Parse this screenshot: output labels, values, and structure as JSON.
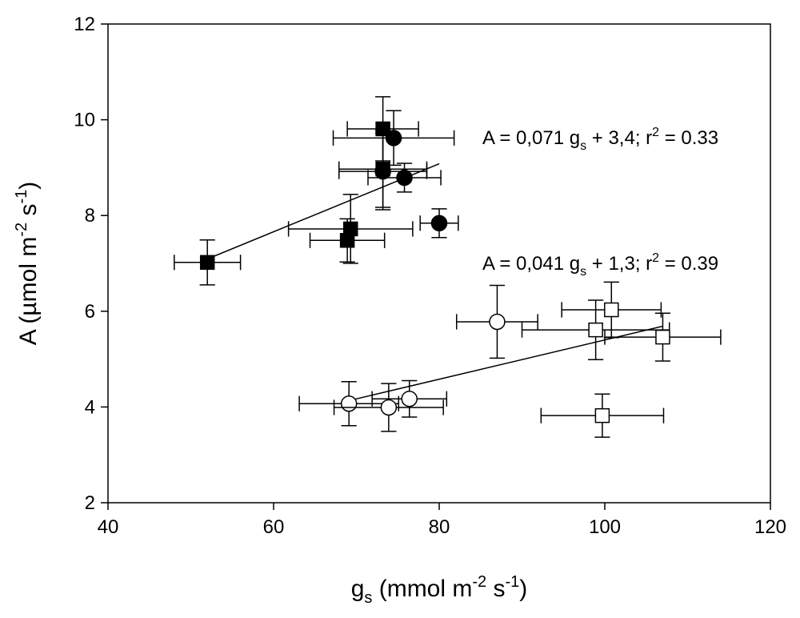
{
  "chart_data": {
    "type": "scatter",
    "title": "",
    "xlabel": {
      "main": "g",
      "sub": "s",
      "rest": " (mmol m",
      "sup1": "-2",
      "mid": " s",
      "sup2": "-1",
      "end": ")"
    },
    "ylabel": {
      "main": "A (µmol m",
      "sup1": "-2",
      "mid": " s",
      "sup2": "-1",
      "end": ")"
    },
    "xlim": [
      40,
      120
    ],
    "ylim": [
      2,
      12
    ],
    "xticks": [
      "40",
      "60",
      "80",
      "100",
      "120"
    ],
    "yticks": [
      "2",
      "4",
      "6",
      "8",
      "10",
      "12"
    ],
    "grid": false,
    "series": [
      {
        "marker": "square",
        "fill": "#000000",
        "points": [
          {
            "x": 52.0,
            "y": 7.02,
            "xerr": 4.0,
            "yerr": 0.47
          },
          {
            "x": 73.2,
            "y": 9.81,
            "xerr": 4.3,
            "yerr": 0.67
          },
          {
            "x": 73.2,
            "y": 8.97,
            "xerr": 5.3,
            "yerr": 0.8
          },
          {
            "x": 69.3,
            "y": 7.72,
            "xerr": 7.5,
            "yerr": 0.72
          },
          {
            "x": 68.9,
            "y": 7.48,
            "xerr": 4.5,
            "yerr": 0.45
          }
        ]
      },
      {
        "marker": "circle",
        "fill": "#000000",
        "points": [
          {
            "x": 74.5,
            "y": 9.62,
            "xerr": 7.3,
            "yerr": 0.57
          },
          {
            "x": 73.2,
            "y": 8.92,
            "xerr": 5.3,
            "yerr": 0.8
          },
          {
            "x": 75.8,
            "y": 8.79,
            "xerr": 4.4,
            "yerr": 0.3
          },
          {
            "x": 80.0,
            "y": 7.84,
            "xerr": 2.3,
            "yerr": 0.3
          }
        ]
      },
      {
        "marker": "circle",
        "fill": "#ffffff",
        "points": [
          {
            "x": 87.0,
            "y": 5.78,
            "xerr": 4.9,
            "yerr": 0.76
          },
          {
            "x": 69.1,
            "y": 4.07,
            "xerr": 6.0,
            "yerr": 0.46
          },
          {
            "x": 73.9,
            "y": 3.99,
            "xerr": 6.6,
            "yerr": 0.5
          },
          {
            "x": 76.4,
            "y": 4.17,
            "xerr": 4.5,
            "yerr": 0.38
          }
        ]
      },
      {
        "marker": "square",
        "fill": "#ffffff",
        "points": [
          {
            "x": 100.8,
            "y": 6.03,
            "xerr": 6.0,
            "yerr": 0.58
          },
          {
            "x": 98.9,
            "y": 5.61,
            "xerr": 8.9,
            "yerr": 0.62
          },
          {
            "x": 107.0,
            "y": 5.46,
            "xerr": 7.0,
            "yerr": 0.5
          },
          {
            "x": 99.7,
            "y": 3.82,
            "xerr": 7.4,
            "yerr": 0.45
          }
        ]
      }
    ],
    "regressions": [
      {
        "slope": 0.071,
        "intercept": 3.4,
        "x_range": [
          52,
          80
        ],
        "label": {
          "a": "A = 0,071 g",
          "sub": "s",
          "b": " + 3,4; r",
          "sup": "2",
          "c": " = 0.33"
        }
      },
      {
        "slope": 0.041,
        "intercept": 1.3,
        "x_range": [
          69,
          107
        ],
        "label": {
          "a": "A = 0,041 g",
          "sub": "s",
          "b": " + 1,3; r",
          "sup": "2",
          "c": " = 0.39"
        }
      }
    ]
  }
}
